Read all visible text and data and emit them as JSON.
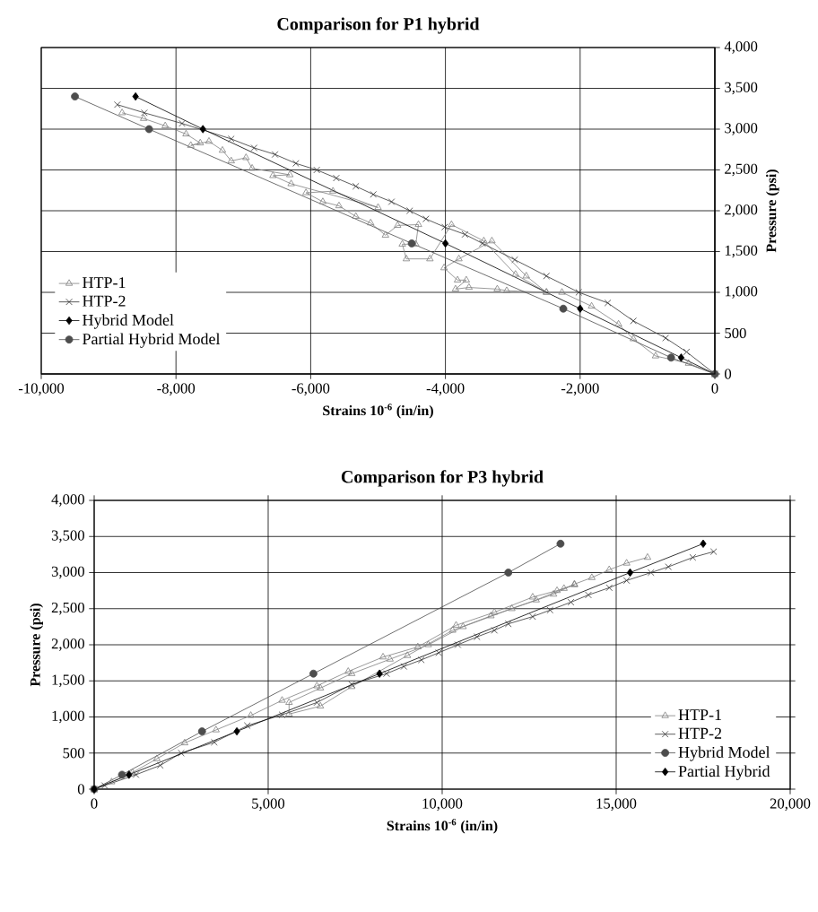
{
  "chart_data": [
    {
      "type": "line",
      "title": "Comparison for P1 hybrid",
      "xlabel": "Strains 10$^{-6}$ (in/in)",
      "y2label": "Pressure (psi)",
      "xlim": [
        -10000,
        0
      ],
      "xticks": [
        {
          "value": -10000,
          "label": "-10,000"
        },
        {
          "value": -8000,
          "label": "-8,000"
        },
        {
          "value": -6000,
          "label": "-6,000"
        },
        {
          "value": -4000,
          "label": "-4,000"
        },
        {
          "value": -2000,
          "label": "-2,000"
        },
        0
      ],
      "y2lim": [
        0,
        4000
      ],
      "y2ticks": [
        0,
        500,
        {
          "value": 1000,
          "label": "1,000"
        },
        {
          "value": 1500,
          "label": "1,500"
        },
        {
          "value": 2000,
          "label": "2,000"
        },
        {
          "value": 2500,
          "label": "2,500"
        },
        {
          "value": 3000,
          "label": "3,000"
        },
        {
          "value": 3500,
          "label": "3,500"
        },
        {
          "value": 4000,
          "label": "4,000"
        }
      ],
      "grid": true,
      "legend": "bottom left",
      "series": [
        {
          "name": "HTP-1",
          "color": "#808080",
          "marker": "triangle",
          "axis": "y2",
          "x": [
            0,
            -390,
            -880,
            -1210,
            -1430,
            -1830,
            -2270,
            -2500,
            -3090,
            -3230,
            -3650,
            -3850,
            -3690,
            -3820,
            -4020,
            -3800,
            -3310,
            -2800,
            -2500,
            -2960,
            -3430,
            -3910,
            -4230,
            -4580,
            -4640,
            -4440,
            -4400,
            -4710,
            -4890,
            -5110,
            -5330,
            -5580,
            -5820,
            -6070,
            -5670,
            -5000,
            -6290,
            -6560,
            -6310,
            -6870,
            -6960,
            -7180,
            -7310,
            -7510,
            -7780,
            -7640,
            -7850,
            -8160,
            -8480,
            -8800
          ],
          "values": [
            0,
            130,
            220,
            430,
            610,
            830,
            1000,
            1000,
            1020,
            1040,
            1060,
            1040,
            1150,
            1150,
            1300,
            1410,
            1630,
            1200,
            1000,
            1220,
            1630,
            1830,
            1410,
            1410,
            1590,
            1590,
            1830,
            1820,
            1700,
            1850,
            1930,
            2060,
            2110,
            2220,
            2240,
            2040,
            2330,
            2430,
            2440,
            2520,
            2650,
            2610,
            2740,
            2850,
            2800,
            2830,
            2940,
            3040,
            3130,
            3200
          ]
        },
        {
          "name": "HTP-2",
          "color": "#333333",
          "marker": "cross",
          "axis": "y2",
          "x": [
            0,
            -420,
            -730,
            -1210,
            -1590,
            -2020,
            -2500,
            -2970,
            -3450,
            -3710,
            -4010,
            -4290,
            -4530,
            -4800,
            -5070,
            -5330,
            -5620,
            -5910,
            -6220,
            -6530,
            -6840,
            -7180,
            -7910,
            -8470,
            -8870
          ],
          "values": [
            0,
            270,
            440,
            650,
            870,
            1000,
            1200,
            1400,
            1600,
            1710,
            1800,
            1900,
            2000,
            2110,
            2200,
            2300,
            2400,
            2500,
            2580,
            2690,
            2770,
            2880,
            3070,
            3200,
            3300
          ]
        },
        {
          "name": "Hybrid Model",
          "color": "#000000",
          "marker": "diamond",
          "axis": "y2",
          "x": [
            0,
            -500,
            -2000,
            -4000,
            -7600,
            -8600
          ],
          "values": [
            0,
            200,
            800,
            1600,
            3000,
            3400
          ]
        },
        {
          "name": "Partial Hybrid Model",
          "color": "#4d4d4d",
          "marker": "circle",
          "axis": "y2",
          "x": [
            0,
            -650,
            -2250,
            -4500,
            -8400,
            -9500
          ],
          "values": [
            0,
            200,
            800,
            1600,
            3000,
            3400
          ]
        }
      ]
    },
    {
      "type": "line",
      "title": "Comparison for P3 hybrid",
      "xlabel": "Strains 10$^{-6}$ (in/in)",
      "ylabel": "Pressure (psi)",
      "xlim": [
        0,
        20000
      ],
      "xticks": [
        0,
        {
          "value": 5000,
          "label": "5,000"
        },
        {
          "value": 10000,
          "label": "10,000"
        },
        {
          "value": 15000,
          "label": "15,000"
        },
        {
          "value": 20000,
          "label": "20,000"
        }
      ],
      "ylim": [
        0,
        4000
      ],
      "yticks": [
        0,
        500,
        {
          "value": 1000,
          "label": "1,000"
        },
        {
          "value": 1500,
          "label": "1,500"
        },
        {
          "value": 2000,
          "label": "2,000"
        },
        {
          "value": 2500,
          "label": "2,500"
        },
        {
          "value": 3000,
          "label": "3,000"
        },
        {
          "value": 3500,
          "label": "3,500"
        },
        {
          "value": 4000,
          "label": "4,000"
        }
      ],
      "grid": true,
      "legend": "bottom right",
      "series": [
        {
          "name": "HTP-1",
          "color": "#808080",
          "marker": "triangle",
          "x": [
            0,
            500,
            1100,
            1800,
            2600,
            3500,
            4500,
            5400,
            6400,
            7300,
            8300,
            9300,
            10400,
            11500,
            12600,
            13300,
            13800,
            13500,
            12700,
            11400,
            10300,
            9000,
            7400,
            6500,
            5600,
            5600,
            6500,
            7400,
            8500,
            9600,
            10600,
            12000,
            13200,
            13800,
            14300,
            14800,
            15300,
            15900
          ],
          "values": [
            0,
            100,
            230,
            420,
            640,
            820,
            1020,
            1230,
            1430,
            1630,
            1830,
            1970,
            2270,
            2450,
            2660,
            2750,
            2830,
            2780,
            2620,
            2400,
            2200,
            1850,
            1420,
            1150,
            1040,
            1200,
            1400,
            1600,
            1800,
            2000,
            2250,
            2500,
            2700,
            2840,
            2930,
            3040,
            3130,
            3210
          ]
        },
        {
          "name": "HTP-2",
          "color": "#333333",
          "marker": "cross",
          "x": [
            0,
            300,
            1200,
            1900,
            2500,
            3450,
            4400,
            5400,
            6400,
            7400,
            8400,
            8900,
            9400,
            9900,
            10450,
            11000,
            11500,
            11900,
            12600,
            13100,
            13700,
            14200,
            14800,
            15300,
            16000,
            16500,
            17200,
            17800
          ],
          "values": [
            0,
            50,
            200,
            330,
            500,
            650,
            880,
            1030,
            1200,
            1450,
            1600,
            1700,
            1790,
            1890,
            2000,
            2110,
            2200,
            2290,
            2390,
            2480,
            2590,
            2690,
            2790,
            2890,
            3000,
            3080,
            3210,
            3290
          ]
        },
        {
          "name": "Hybrid Model",
          "color": "#4d4d4d",
          "marker": "circle",
          "x": [
            0,
            800,
            3100,
            6300,
            11900,
            13400
          ],
          "values": [
            0,
            200,
            800,
            1600,
            3000,
            3400
          ]
        },
        {
          "name": "Partial Hybrid",
          "color": "#000000",
          "marker": "diamond",
          "x": [
            0,
            1000,
            4100,
            8200,
            15400,
            17500
          ],
          "values": [
            0,
            200,
            800,
            1600,
            3000,
            3400
          ]
        }
      ]
    }
  ]
}
